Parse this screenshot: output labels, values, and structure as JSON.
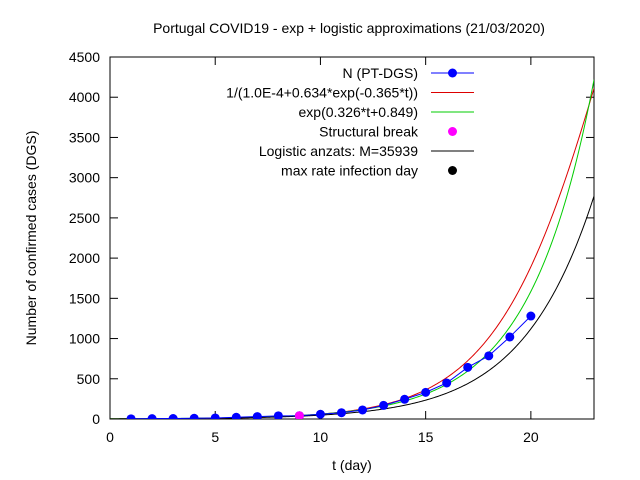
{
  "chart_data": {
    "type": "line",
    "title": "Portugal COVID19 - exp + logistic approximations (21/03/2020)",
    "xlabel": "t (day)",
    "ylabel": "Number of confirmed cases (DGS)",
    "xlim": [
      0,
      23
    ],
    "ylim": [
      0,
      4500
    ],
    "xticks": [
      0,
      5,
      10,
      15,
      20
    ],
    "yticks": [
      0,
      500,
      1000,
      1500,
      2000,
      2500,
      3000,
      3500,
      4000,
      4500
    ],
    "legend_position": "top-right",
    "series": [
      {
        "name": "N (PT-DGS)",
        "kind": "points-line",
        "color": "#0000ff",
        "x": [
          1,
          2,
          3,
          4,
          5,
          6,
          7,
          8,
          9,
          10,
          11,
          12,
          13,
          14,
          15,
          16,
          17,
          18,
          19,
          20
        ],
        "y": [
          2,
          4,
          6,
          9,
          13,
          21,
          30,
          39,
          41,
          59,
          78,
          112,
          169,
          245,
          331,
          448,
          642,
          785,
          1020,
          1280
        ]
      },
      {
        "name": "1/(1.0E-4+0.634*exp(-0.365*t))",
        "kind": "function",
        "color": "#dd0000",
        "formula": "logistic1"
      },
      {
        "name": "exp(0.326*t+0.849)",
        "kind": "function",
        "color": "#00cc00",
        "formula": "exp"
      },
      {
        "name": "Structural break",
        "kind": "points",
        "color": "#ff00ff",
        "x": [
          9
        ],
        "y": [
          41
        ]
      },
      {
        "name": "Logistic anzats: M=35939",
        "kind": "function",
        "color": "#000000",
        "formula": "logistic2"
      },
      {
        "name": "max rate infection day",
        "kind": "points",
        "color": "#000000",
        "x": [],
        "y": []
      }
    ]
  }
}
